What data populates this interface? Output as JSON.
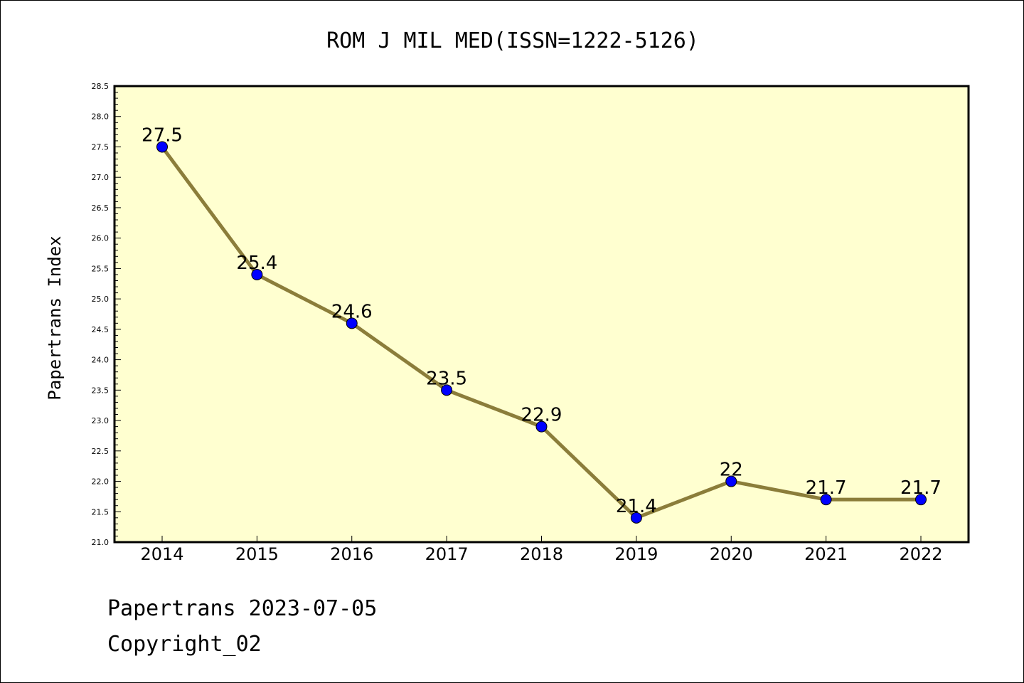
{
  "chart_data": {
    "type": "line",
    "title": "ROM J MIL MED(ISSN=1222-5126)",
    "xlabel": "",
    "ylabel": "Papertrans Index",
    "categories": [
      "2014",
      "2015",
      "2016",
      "2017",
      "2018",
      "2019",
      "2020",
      "2021",
      "2022"
    ],
    "series": [
      {
        "values": [
          27.5,
          25.4,
          24.6,
          23.5,
          22.9,
          21.4,
          22.0,
          21.7,
          21.7
        ],
        "labels": [
          "27.5",
          "25.4",
          "24.6",
          "23.5",
          "22.9",
          "21.4",
          "22",
          "21.7",
          "21.7"
        ]
      }
    ],
    "ylim": [
      21.0,
      28.5
    ],
    "yticks": [
      "21.0",
      "21.5",
      "22.0",
      "22.5",
      "23.0",
      "23.5",
      "24.0",
      "24.5",
      "25.0",
      "25.5",
      "26.0",
      "26.5",
      "27.0",
      "27.5",
      "28.0",
      "28.5"
    ],
    "grid": false,
    "legend": "none",
    "colors": {
      "plot_background": "#ffffd0",
      "line": "#8b7d3a",
      "marker": "#0000ff"
    }
  },
  "footer": {
    "line1": "Papertrans 2023-07-05",
    "line2": "Copyright_02"
  }
}
